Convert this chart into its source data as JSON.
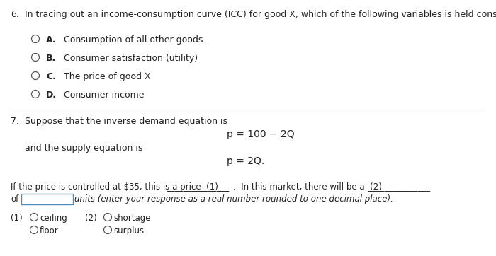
{
  "bg_color": "#ffffff",
  "q6_number": "6.",
  "q6_text": "In tracing out an income-consumption curve (ICC) for good X, which of the following variables is held constant?",
  "q6_options": [
    {
      "letter": "A.",
      "text": "  Consumption of all other goods."
    },
    {
      "letter": "B.",
      "text": "  Consumer satisfaction (utility)"
    },
    {
      "letter": "C.",
      "text": "  The price of good X"
    },
    {
      "letter": "D.",
      "text": "  Consumer income"
    }
  ],
  "q7_number": "7.",
  "q7_text": "Suppose that the inverse demand equation is",
  "q7_eq1": "p = 100 − 2Q",
  "q7_and": "and the supply equation is",
  "q7_eq2": "p = 2Q.",
  "q7_fill_a": "If the price is controlled at $35, this is a price  (1) ",
  "q7_fill_line1_underline": "_______________",
  "q7_fill_b": ".  In this market, there will be a  (2) ",
  "q7_fill_line2_underline": "_______________",
  "q7_fill2_start": "of",
  "q7_fill2_end": "units (enter your response as a real number rounded to one decimal place).",
  "q7_opts_label1": "(1)",
  "q7_opts_label2": "(2)",
  "q7_opts_col1": [
    "ceiling",
    "floor"
  ],
  "q7_opts_col2": [
    "shortage",
    "surplus"
  ],
  "font_size_main": 9.0,
  "font_size_eq": 10.0,
  "font_size_small": 8.5
}
